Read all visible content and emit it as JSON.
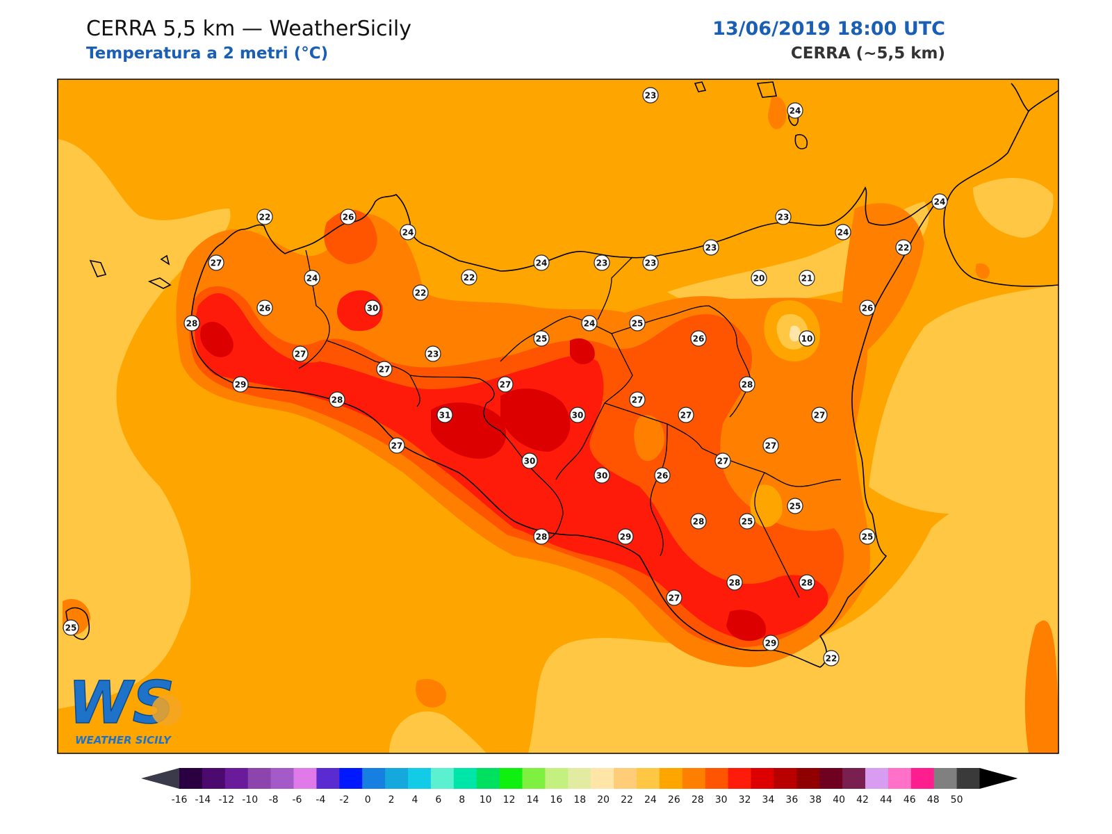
{
  "header": {
    "title": "CERRA 5,5 km — WeatherSicily",
    "subtitle": "Temperatura a 2 metri (°C)",
    "datetime": "13/06/2019 18:00 UTC",
    "model": "CERRA (~5,5 km)"
  },
  "logo": {
    "letters": "WS",
    "text": "WEATHER SICILY"
  },
  "colors": {
    "background_sea": "#ffa500",
    "outer_light": "#ffc744",
    "hot_26": "#ff7f00",
    "hot_28": "#ff5500",
    "hot_30": "#ff1b0a",
    "hot_32": "#dd0000",
    "coast": "#000000",
    "accent_blue": "#1a5fb4"
  },
  "colorbar": {
    "tick_labels": [
      "-16",
      "-14",
      "-12",
      "-10",
      "-8",
      "-6",
      "-4",
      "-2",
      "0",
      "2",
      "4",
      "6",
      "8",
      "10",
      "12",
      "14",
      "16",
      "18",
      "20",
      "22",
      "24",
      "26",
      "28",
      "30",
      "32",
      "34",
      "36",
      "38",
      "40",
      "42",
      "44",
      "46",
      "48",
      "50"
    ],
    "colors": [
      "#2b0040",
      "#4c0a6e",
      "#6a1b9a",
      "#8e44ad",
      "#a55bc7",
      "#e07ae8",
      "#5a2bd0",
      "#0019ff",
      "#1680e0",
      "#15a8dc",
      "#12cbe6",
      "#5af0d0",
      "#00e6a8",
      "#00e060",
      "#10f010",
      "#7ff040",
      "#c4f080",
      "#e2eca0",
      "#ffe6a8",
      "#ffcc77",
      "#ffc744",
      "#ffa500",
      "#ff7f00",
      "#ff5500",
      "#ff1b0a",
      "#dd0000",
      "#b80000",
      "#900000",
      "#6e0020",
      "#7a2050",
      "#d89cf0",
      "#ff70c8",
      "#ff1e90",
      "#808080",
      "#3a3a3a"
    ],
    "under_color": "#3a3a4a",
    "over_color": "#000000"
  },
  "stations": [
    {
      "value": "23"
    },
    {
      "value": "24"
    },
    {
      "value": "22"
    },
    {
      "value": "26"
    },
    {
      "value": "24"
    },
    {
      "value": "27"
    },
    {
      "value": "24"
    },
    {
      "value": "28"
    },
    {
      "value": "26"
    },
    {
      "value": "30"
    },
    {
      "value": "22"
    },
    {
      "value": "22"
    },
    {
      "value": "24"
    },
    {
      "value": "23"
    },
    {
      "value": "23"
    },
    {
      "value": "23"
    },
    {
      "value": "23"
    },
    {
      "value": "24"
    },
    {
      "value": "24"
    },
    {
      "value": "22"
    },
    {
      "value": "20"
    },
    {
      "value": "21"
    },
    {
      "value": "26"
    },
    {
      "value": "10"
    },
    {
      "value": "27"
    },
    {
      "value": "29"
    },
    {
      "value": "27"
    },
    {
      "value": "23"
    },
    {
      "value": "25"
    },
    {
      "value": "24"
    },
    {
      "value": "25"
    },
    {
      "value": "26"
    },
    {
      "value": "28"
    },
    {
      "value": "27"
    },
    {
      "value": "28"
    },
    {
      "value": "31"
    },
    {
      "value": "30"
    },
    {
      "value": "27"
    },
    {
      "value": "27"
    },
    {
      "value": "27"
    },
    {
      "value": "27"
    },
    {
      "value": "30"
    },
    {
      "value": "30"
    },
    {
      "value": "26"
    },
    {
      "value": "27"
    },
    {
      "value": "27"
    },
    {
      "value": "25"
    },
    {
      "value": "28"
    },
    {
      "value": "25"
    },
    {
      "value": "25"
    },
    {
      "value": "28"
    },
    {
      "value": "29"
    },
    {
      "value": "28"
    },
    {
      "value": "28"
    },
    {
      "value": "27"
    },
    {
      "value": "29"
    },
    {
      "value": "22"
    },
    {
      "value": "25"
    }
  ]
}
